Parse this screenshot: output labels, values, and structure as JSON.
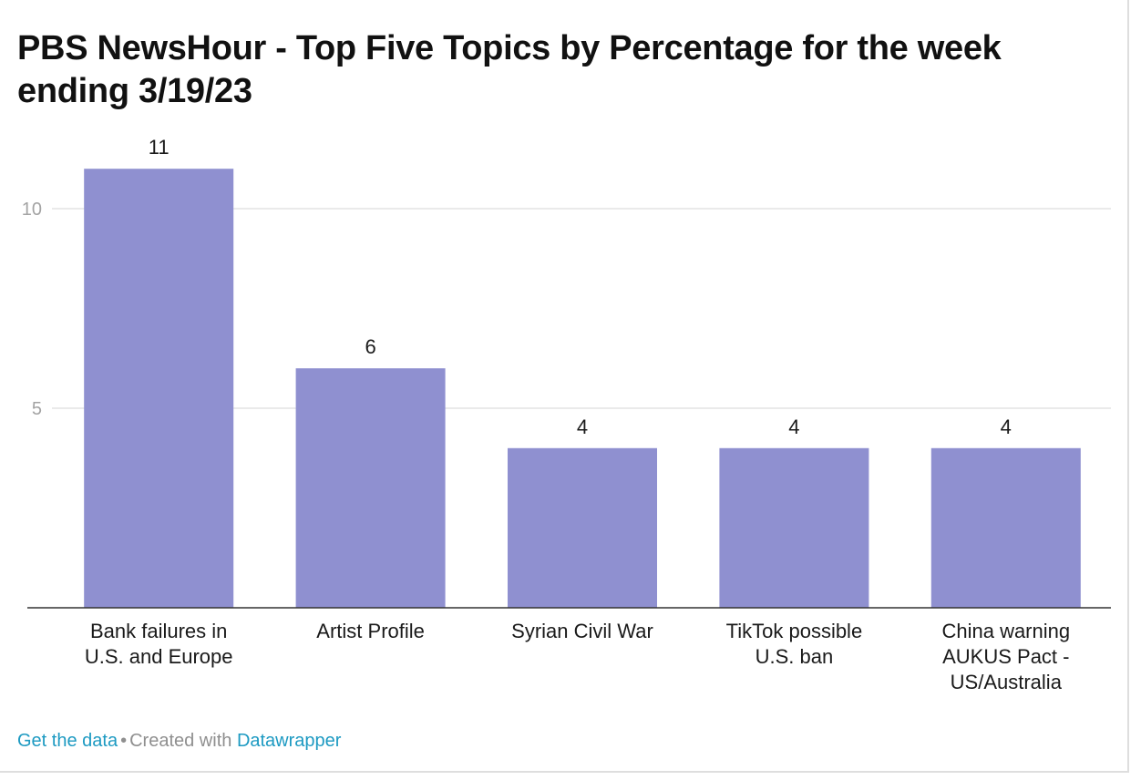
{
  "title": "PBS NewsHour - Top Five Topics by Percentage for the week ending 3/19/23",
  "footer": {
    "get_data": "Get the data",
    "separator": "•",
    "created_with": "Created with",
    "tool": "Datawrapper"
  },
  "colors": {
    "bar": "#8f90d0",
    "grid": "#e4e4e4",
    "baseline": "#333333",
    "tick_label": "#a3a3a3",
    "value_label": "#1a1a1a",
    "link": "#1d9ac2"
  },
  "chart_data": {
    "type": "bar",
    "title": "PBS NewsHour - Top Five Topics by Percentage for the week ending 3/19/23",
    "categories": [
      [
        "Bank failures in",
        "U.S. and Europe"
      ],
      [
        "Artist Profile"
      ],
      [
        "Syrian Civil War"
      ],
      [
        "TikTok possible",
        "U.S. ban"
      ],
      [
        "China warning",
        "AUKUS Pact -",
        "US/Australia"
      ]
    ],
    "values": [
      11,
      6,
      4,
      4,
      4
    ],
    "value_labels": [
      "11",
      "6",
      "4",
      "4",
      "4"
    ],
    "y_ticks": [
      5,
      10
    ],
    "y_tick_labels": [
      "5",
      "10"
    ],
    "ylim": [
      0,
      11
    ],
    "grid": true,
    "xlabel": "",
    "ylabel": ""
  }
}
